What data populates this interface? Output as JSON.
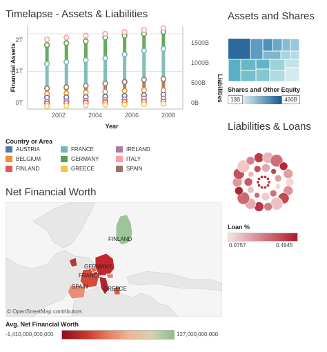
{
  "timelapse": {
    "title": "Timelapse - Assets & Liabilities",
    "y_left_label": "Financial Assets",
    "y_right_label": "Liabilities",
    "x_label": "Year",
    "x_ticks": [
      "2002",
      "2004",
      "2006",
      "2008"
    ],
    "y_left_ticks": [
      "2T",
      "1T",
      "0T"
    ],
    "y_right_ticks": [
      "1500B",
      "1000B",
      "500B",
      "0B"
    ]
  },
  "treemap": {
    "title": "Assets and Shares",
    "legend_title": "Shares and Other Equity",
    "min_label": "13B",
    "max_label": "460B"
  },
  "liabilities": {
    "title": "Liabilities & Loans",
    "legend_title": "Loan %",
    "min_label": "0.0757",
    "max_label": "0.4945"
  },
  "legend": {
    "title": "Country or Area",
    "items": [
      {
        "label": "AUSTRIA",
        "color": "#4e79a7"
      },
      {
        "label": "FRANCE",
        "color": "#76b7b2"
      },
      {
        "label": "IRELAND",
        "color": "#b07aa1"
      },
      {
        "label": "BELGIUM",
        "color": "#f28e2b"
      },
      {
        "label": "GERMANY",
        "color": "#59a14f"
      },
      {
        "label": "ITALY",
        "color": "#ff9da7"
      },
      {
        "label": "FINLAND",
        "color": "#e15759"
      },
      {
        "label": "GREECE",
        "color": "#edc948"
      },
      {
        "label": "SPAIN",
        "color": "#9c755f"
      }
    ]
  },
  "map": {
    "title": "Net Financial Worth",
    "attribution": "© OpenStreetMap contributors",
    "labels": [
      "FINLAND",
      "GERMANY",
      "FRANCE",
      "SPAIN",
      "GREECE"
    ],
    "legend_title": "Avg. Net Financial Worth",
    "min_label": "-1,410,000,000,000",
    "max_label": "127,000,000,000"
  },
  "chart_data": {
    "type": "scatter",
    "title": "Timelapse - Assets & Liabilities",
    "xlabel": "Year",
    "ylabel": "Financial Assets",
    "y2label": "Liabilities",
    "x": [
      2002,
      2003,
      2004,
      2005,
      2006,
      2007,
      2008
    ],
    "xlim": [
      2001,
      2009
    ],
    "ylim": [
      0,
      2.2
    ],
    "y_unit": "T",
    "series": [
      {
        "name": "GERMANY",
        "color": "#59a14f",
        "values": [
          1.7,
          1.75,
          1.8,
          1.9,
          1.95,
          2.0,
          2.05
        ]
      },
      {
        "name": "FRANCE",
        "color": "#76b7b2",
        "values": [
          1.2,
          1.25,
          1.3,
          1.35,
          1.45,
          1.55,
          1.6
        ]
      },
      {
        "name": "ITALY",
        "color": "#ff9da7",
        "values": [
          1.85,
          1.9,
          1.95,
          2.0,
          2.05,
          2.1,
          2.15
        ]
      },
      {
        "name": "SPAIN",
        "color": "#9c755f",
        "values": [
          0.55,
          0.58,
          0.62,
          0.68,
          0.72,
          0.78,
          0.8
        ]
      },
      {
        "name": "BELGIUM",
        "color": "#f28e2b",
        "values": [
          0.4,
          0.42,
          0.44,
          0.46,
          0.48,
          0.5,
          0.5
        ]
      },
      {
        "name": "AUSTRIA",
        "color": "#4e79a7",
        "values": [
          0.3,
          0.31,
          0.32,
          0.33,
          0.35,
          0.37,
          0.38
        ]
      },
      {
        "name": "IRELAND",
        "color": "#b07aa1",
        "values": [
          0.2,
          0.21,
          0.22,
          0.24,
          0.26,
          0.28,
          0.28
        ]
      },
      {
        "name": "FINLAND",
        "color": "#e15759",
        "values": [
          0.15,
          0.16,
          0.17,
          0.18,
          0.19,
          0.2,
          0.2
        ]
      },
      {
        "name": "GREECE",
        "color": "#edc948",
        "values": [
          0.08,
          0.09,
          0.1,
          0.11,
          0.12,
          0.13,
          0.14
        ]
      }
    ]
  }
}
